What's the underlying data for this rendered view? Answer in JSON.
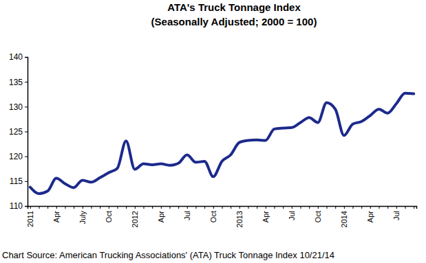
{
  "chart_data": {
    "type": "line",
    "title": "ATA's Truck Tonnage Index",
    "subtitle": "(Seasonally Adjusted; 2000 = 100)",
    "annotations": [
      "Chart Source: American Trucking Associations' (ATA) Truck Tonnage Index 10/21/14"
    ],
    "categories": [
      "2011",
      null,
      null,
      "Apr",
      null,
      null,
      "July",
      null,
      null,
      "Oct",
      null,
      null,
      "2012",
      null,
      null,
      "Apr",
      null,
      null,
      "Jul",
      null,
      null,
      "Oct",
      null,
      null,
      "2013",
      null,
      null,
      "Apr",
      null,
      null,
      "Jul",
      null,
      null,
      "Oct",
      null,
      null,
      "2014",
      null,
      null,
      "Apr",
      null,
      null,
      "Jul",
      null,
      null
    ],
    "values": [
      113.8,
      112.5,
      113.0,
      115.6,
      114.5,
      113.7,
      115.2,
      114.8,
      115.7,
      116.7,
      117.6,
      123.1,
      117.4,
      118.5,
      118.3,
      118.5,
      118.2,
      118.6,
      120.3,
      118.8,
      119.0,
      115.9,
      119.0,
      120.3,
      122.8,
      123.2,
      123.3,
      123.2,
      125.5,
      125.7,
      125.8,
      126.8,
      127.8,
      126.8,
      130.8,
      129.5,
      124.2,
      126.5,
      127.0,
      128.2,
      129.5,
      128.7,
      130.6,
      132.7,
      132.6
    ],
    "color": "#1c2a8c",
    "ylim": [
      110,
      140
    ],
    "yticks": [
      110,
      115,
      120,
      125,
      130,
      135,
      140
    ],
    "grid": false
  }
}
